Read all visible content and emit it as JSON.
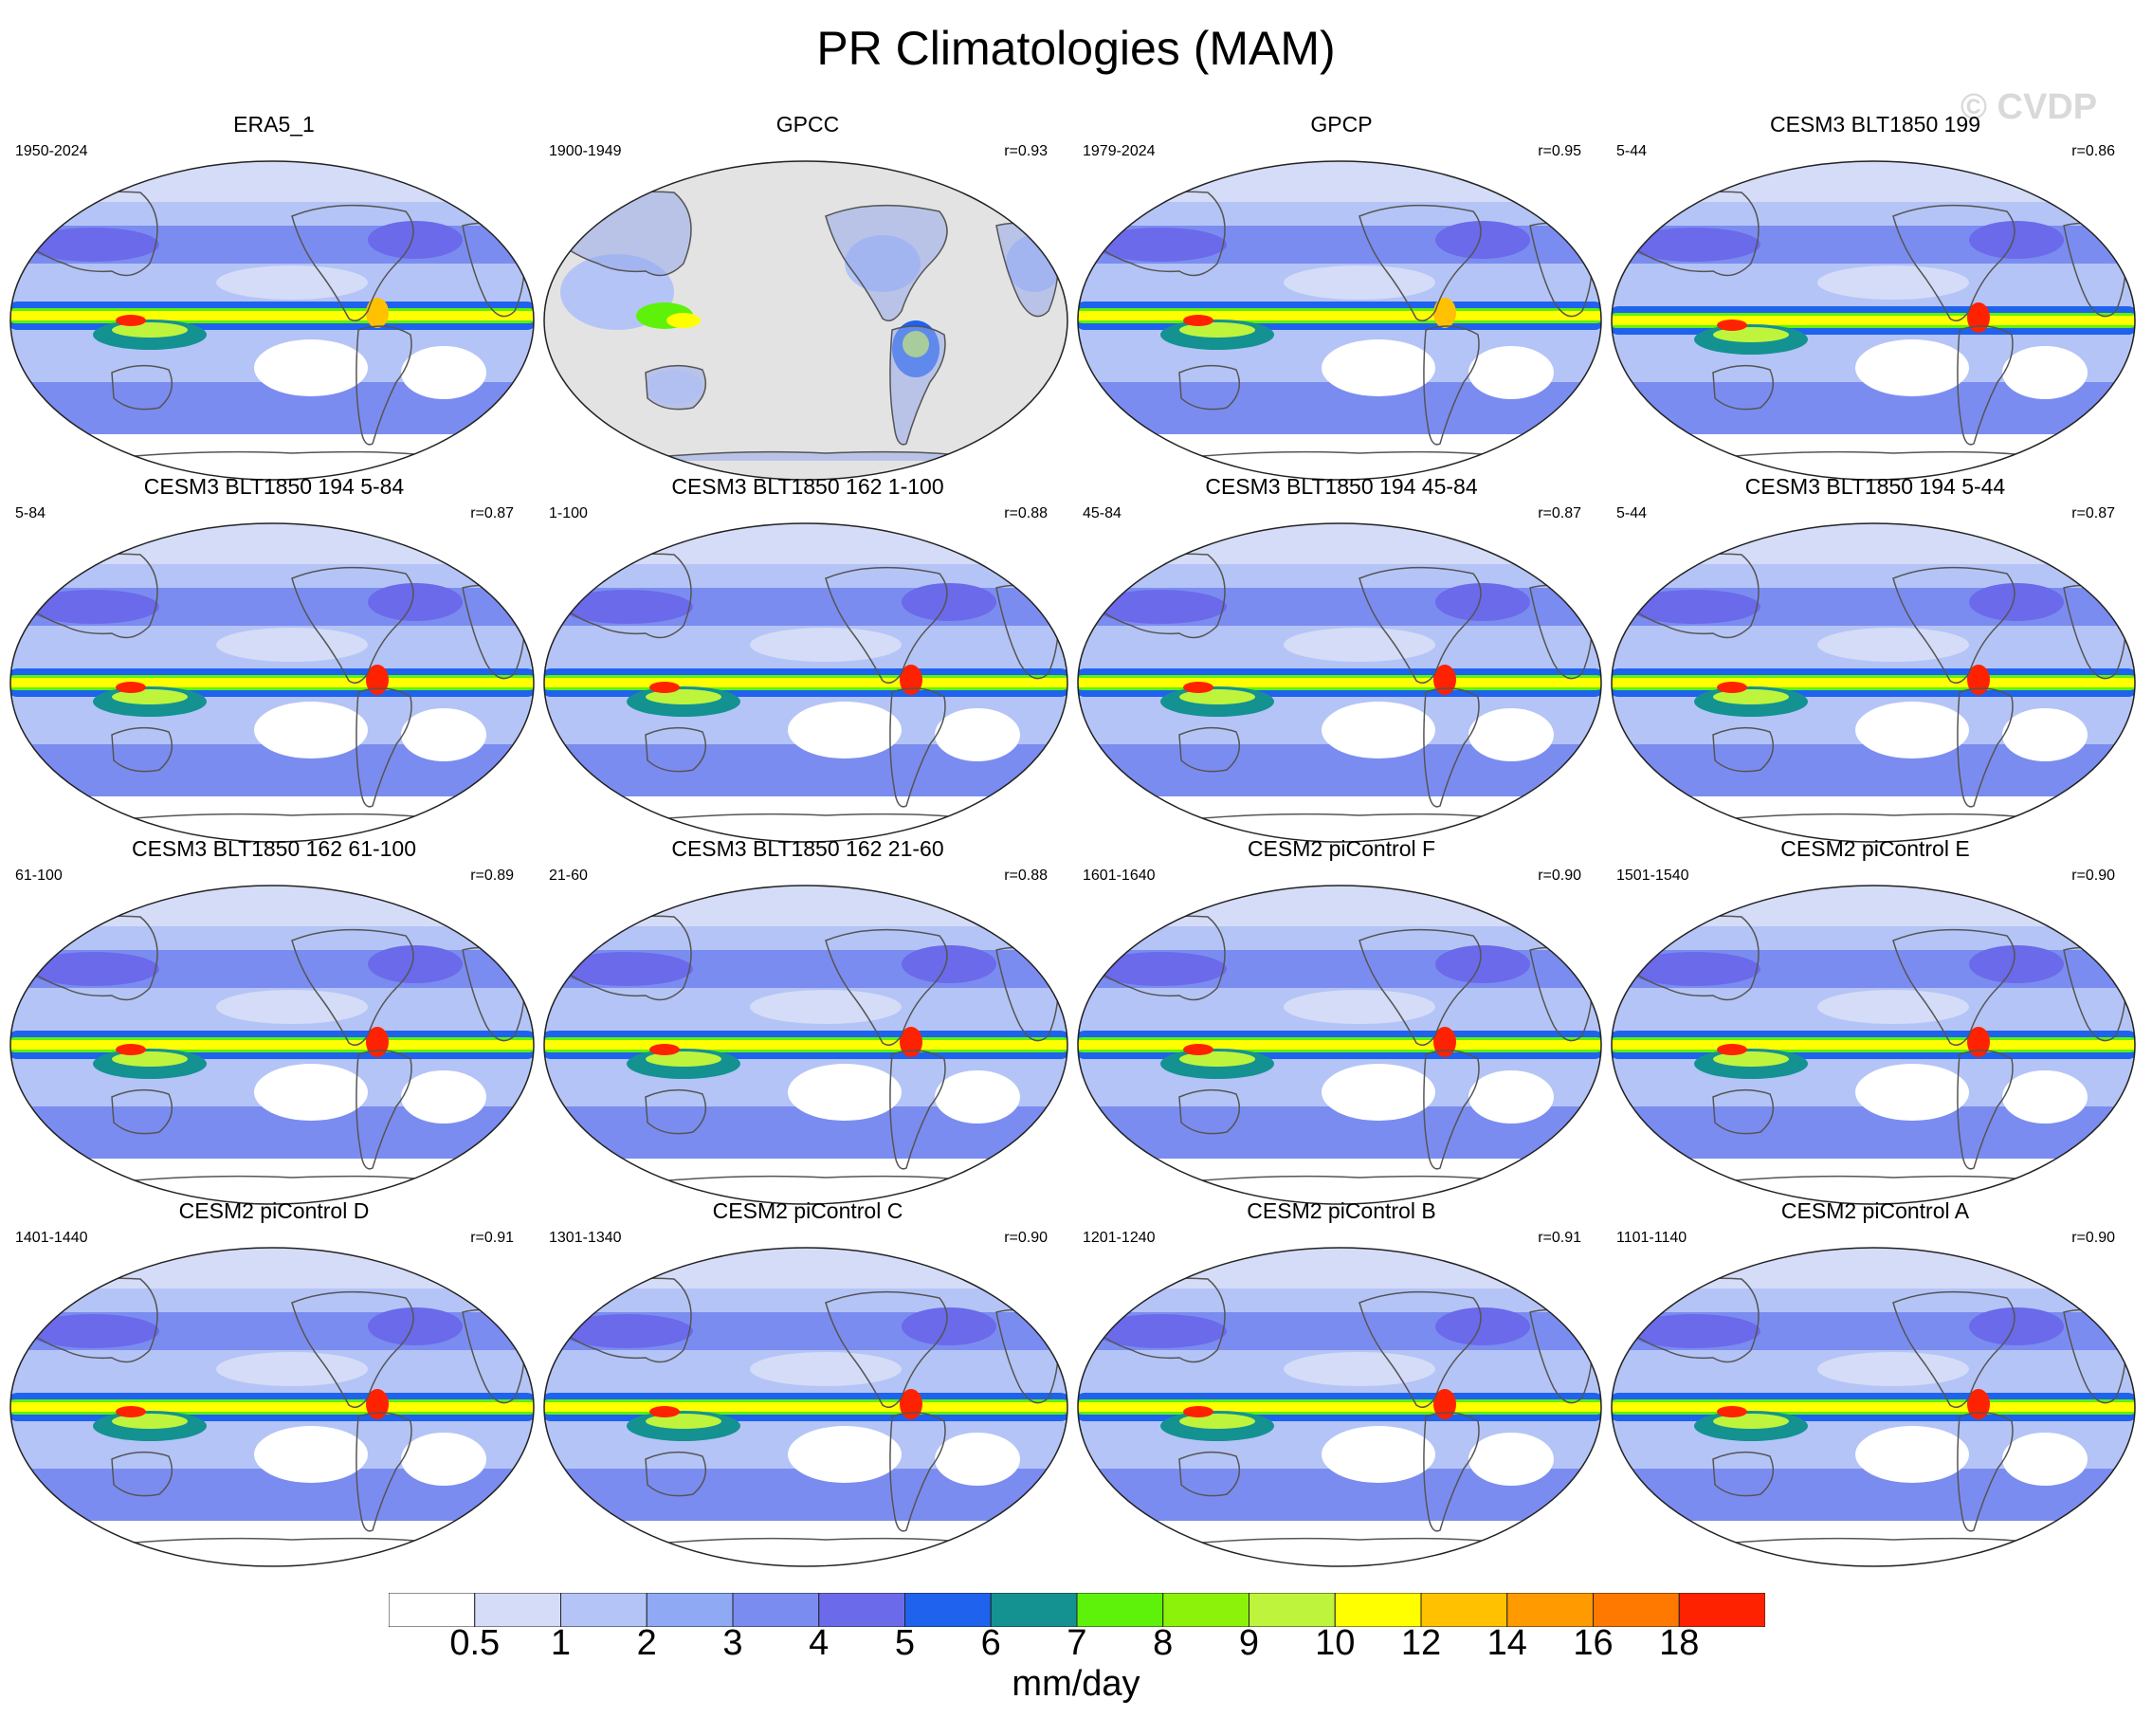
{
  "title": "PR Climatologies (MAM)",
  "watermark": "© CVDP",
  "panels": [
    {
      "title": "ERA5_1",
      "years": "1950-2024",
      "r": "",
      "style": "obs"
    },
    {
      "title": "GPCC",
      "years": "1900-1949",
      "r": "r=0.93",
      "style": "land"
    },
    {
      "title": "GPCP",
      "years": "1979-2024",
      "r": "r=0.95",
      "style": "obs"
    },
    {
      "title": "CESM3 BLT1850 199",
      "years": "5-44",
      "r": "r=0.86",
      "style": "model"
    },
    {
      "title": "CESM3 BLT1850 194 5-84",
      "years": "5-84",
      "r": "r=0.87",
      "style": "model"
    },
    {
      "title": "CESM3 BLT1850 162 1-100",
      "years": "1-100",
      "r": "r=0.88",
      "style": "model"
    },
    {
      "title": "CESM3 BLT1850 194 45-84",
      "years": "45-84",
      "r": "r=0.87",
      "style": "model"
    },
    {
      "title": "CESM3 BLT1850 194 5-44",
      "years": "5-44",
      "r": "r=0.87",
      "style": "model"
    },
    {
      "title": "CESM3 BLT1850 162 61-100",
      "years": "61-100",
      "r": "r=0.89",
      "style": "model"
    },
    {
      "title": "CESM3 BLT1850 162 21-60",
      "years": "21-60",
      "r": "r=0.88",
      "style": "model"
    },
    {
      "title": "CESM2 piControl F",
      "years": "1601-1640",
      "r": "r=0.90",
      "style": "model"
    },
    {
      "title": "CESM2 piControl E",
      "years": "1501-1540",
      "r": "r=0.90",
      "style": "model"
    },
    {
      "title": "CESM2 piControl D",
      "years": "1401-1440",
      "r": "r=0.91",
      "style": "model"
    },
    {
      "title": "CESM2 piControl C",
      "years": "1301-1340",
      "r": "r=0.90",
      "style": "model"
    },
    {
      "title": "CESM2 piControl B",
      "years": "1201-1240",
      "r": "r=0.91",
      "style": "model"
    },
    {
      "title": "CESM2 piControl A",
      "years": "1101-1140",
      "r": "r=0.90",
      "style": "model"
    }
  ],
  "colorbar": {
    "units": "mm/day",
    "levels": [
      "0.5",
      "1",
      "2",
      "3",
      "4",
      "5",
      "6",
      "7",
      "8",
      "9",
      "10",
      "12",
      "14",
      "16",
      "18"
    ],
    "colors": [
      "#ffffff",
      "#d5dcf8",
      "#b4c4f6",
      "#8fa9f4",
      "#7b8cf0",
      "#6a6aea",
      "#1f62ee",
      "#149292",
      "#5ef20a",
      "#8df20a",
      "#bef53c",
      "#ffff00",
      "#ffc100",
      "#ff9a00",
      "#ff7800",
      "#ff2200"
    ]
  }
}
